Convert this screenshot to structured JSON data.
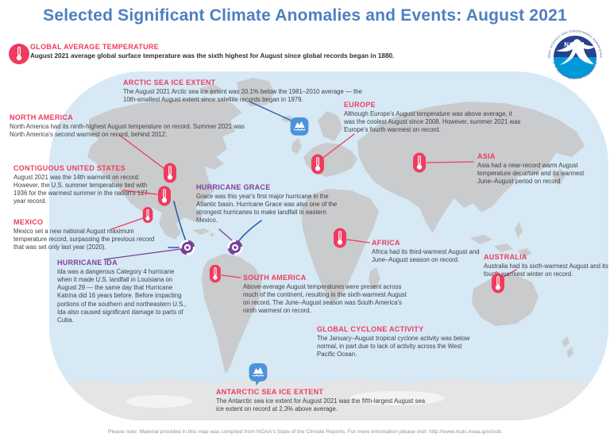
{
  "title": "Selected Significant Climate Anomalies and Events: August 2021",
  "logo": {
    "name": "NOAA",
    "ring_top": "NATIONAL OCEANIC AND ATMOSPHERIC ADMINISTRATION",
    "ring_bottom": "U.S. DEPARTMENT OF COMMERCE"
  },
  "notes": {
    "global": {
      "heading": "GLOBAL AVERAGE TEMPERATURE",
      "body": "August 2021 average global surface temperature was the sixth highest for August since global records began in 1880."
    },
    "arctic": {
      "heading": "ARCTIC SEA ICE EXTENT",
      "body": "The August 2021 Arctic sea ice extent was 20.1% below the 1981–2010 average — the 10th-smallest August extent since satellite records began in 1979."
    },
    "europe": {
      "heading": "EUROPE",
      "body": "Although Europe's August temperature was above average, it was the coolest August since 2008. However, summer 2021 was Europe's fourth warmest on record."
    },
    "north_america": {
      "heading": "NORTH AMERICA",
      "body": "North America had its ninth-highest August temperature on record. Summer 2021 was North America's second warmest on record, behind 2012."
    },
    "contiguous_us": {
      "heading": "CONTIGUOUS UNITED STATES",
      "body": "August 2021 was the 14th warmest on record. However, the U.S. summer temperature tied with 1936 for the warmest summer in the nation's 127-year record."
    },
    "mexico": {
      "heading": "MEXICO",
      "body": "Mexico set a new national August maximum temperature record, surpassing the previous record that was set only last year (2020)."
    },
    "hurricane_ida": {
      "heading": "HURRICANE IDA",
      "body": "Ida was a dangerous Category 4 hurricane when it made U.S. landfall in Louisiana on August 29 — the same day that Hurricane Katrina did 16 years before. Before impacting portions of the southern and northeastern U.S., Ida also caused significant damage to parts of Cuba."
    },
    "hurricane_grace": {
      "heading": "HURRICANE GRACE",
      "body": "Grace was this year's first major hurricane in the Atlantic basin. Hurricane Grace was also one of the strongest hurricanes to make landfall in eastern Mexico."
    },
    "asia": {
      "heading": "ASIA",
      "body": "Asia had a near-record warm August temperature departure and its warmest June–August period on record."
    },
    "africa": {
      "heading": "AFRICA",
      "body": "Africa had its third-warmest August and June–August season on record."
    },
    "australia": {
      "heading": "AUSTRALIA",
      "body": "Australia had its sixth-warmest August and its fourth-warmest winter on record."
    },
    "south_america": {
      "heading": "SOUTH AMERICA",
      "body": "Above-average August temperatures were present across much of the continent, resulting in the sixth-warmest August on record. The June–August season was South America's ninth warmest on record."
    },
    "global_cyclone": {
      "heading": "GLOBAL CYCLONE ACTIVITY",
      "body": "The January–August tropical cyclone activity was below normal, in part due to lack of activity across the West Pacific Ocean."
    },
    "antarctic": {
      "heading": "ANTARCTIC SEA ICE EXTENT",
      "body": "The Antarctic sea ice extent for August 2021 was the fifth-largest August sea ice extent on record at 2.3% above average."
    }
  },
  "footer": "Please note: Material provided in this map was compiled from NOAA's State of the Climate Reports. For more information please visit: http://www.ncdc.noaa.gov/sotc",
  "icons": {
    "thermometer-pin": "white thermometer glyph in pink pill marker",
    "hurricane-icon": "white cyclone spiral in purple circle",
    "sea-ice-icon": "white iceberg glyph in blue rounded square",
    "noaa-logo": "NOAA seagull emblem, navy over cyan circle"
  },
  "colors": {
    "title_blue": "#4E7FC1",
    "accent_pink": "#EF3B5E",
    "accent_purple": "#7C3F98",
    "track_blue": "#2C5DA8",
    "ice_blue": "#4D92D9",
    "ocean": "#D6E9F5",
    "land": "#C9CBCD",
    "antarctica": "#E3E5E6"
  }
}
